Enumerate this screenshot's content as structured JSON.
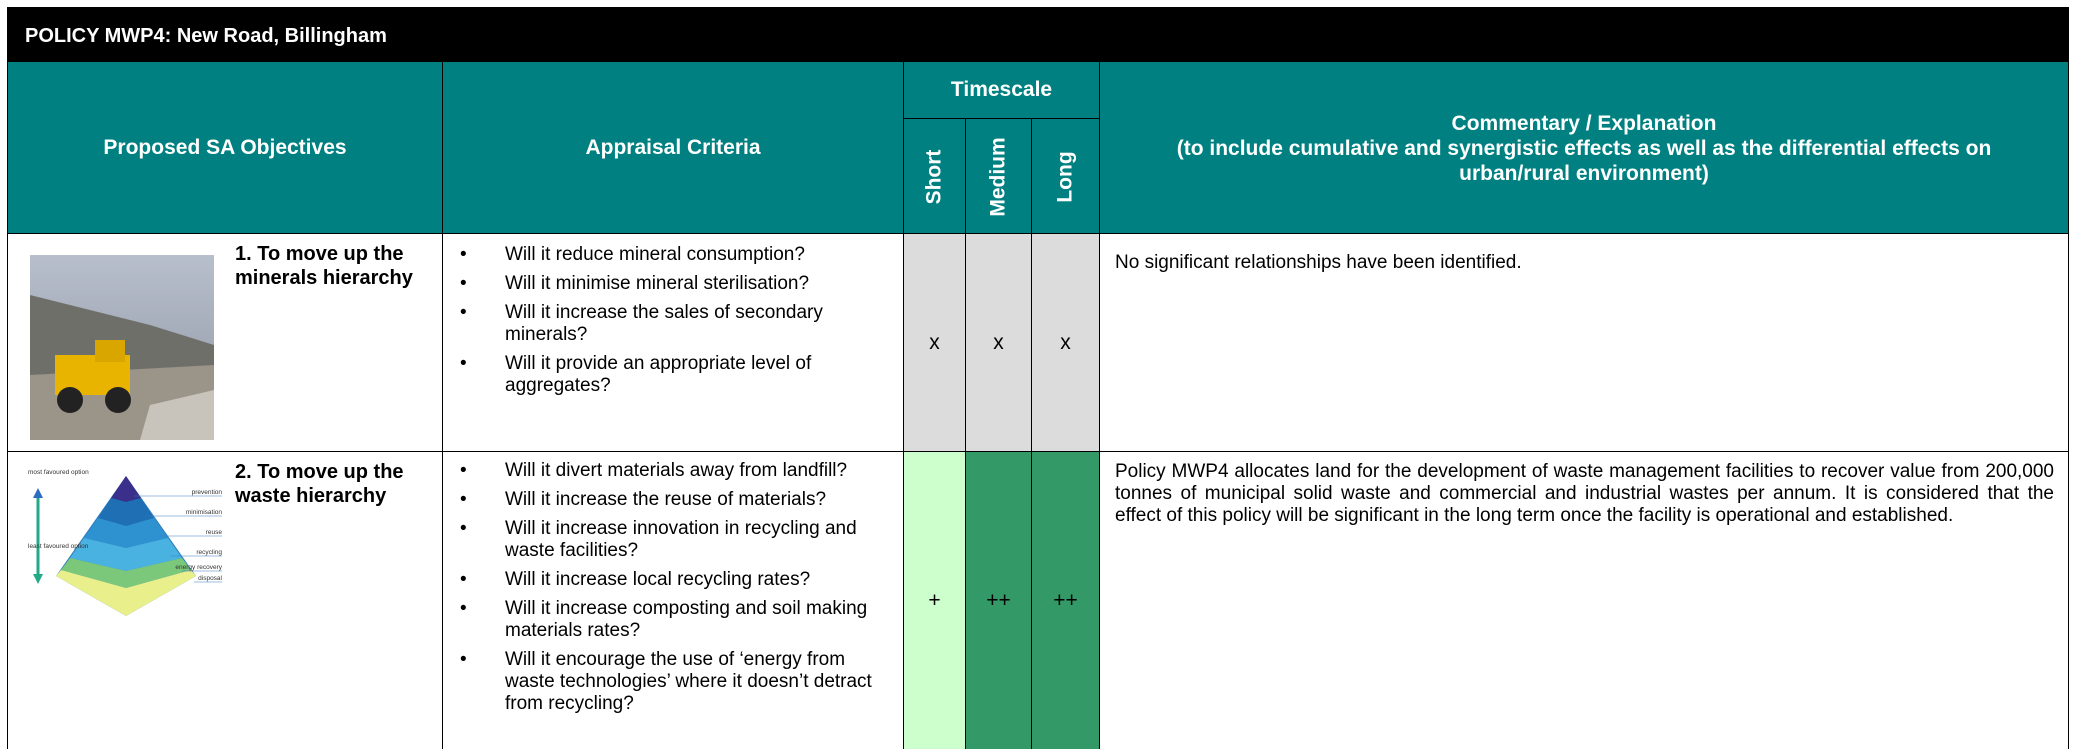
{
  "title": "POLICY MWP4: New Road, Billingham",
  "header": {
    "objectives": "Proposed SA Objectives",
    "criteria": "Appraisal Criteria",
    "timescale": "Timescale",
    "short": "Short",
    "medium": "Medium",
    "long": "Long",
    "commentary_title": "Commentary / Explanation",
    "commentary_note": "(to include cumulative and synergistic effects as well as the differential effects on urban/rural environment)"
  },
  "rows": [
    {
      "objective": "1. To move up the minerals hierarchy",
      "criteria": [
        "Will it reduce mineral consumption?",
        "Will it minimise mineral sterilisation?",
        "Will it increase the sales of secondary minerals?",
        "Will it provide an appropriate level of aggregates?"
      ],
      "short": "x",
      "medium": "x",
      "long": "x",
      "commentary": "No significant relationships have been identified."
    },
    {
      "objective": "2. To move up the waste hierarchy",
      "criteria": [
        "Will it divert materials away from landfill?",
        "Will it increase the reuse of materials?",
        "Will it increase innovation in recycling and waste facilities?",
        "Will it increase local recycling rates?",
        "Will it increase composting and soil making materials rates?",
        "Will it encourage the use of ‘energy from waste technologies’ where it doesn’t detract from recycling?"
      ],
      "short": "+",
      "medium": "++",
      "long": "++",
      "commentary": "Policy MWP4 allocates land for the development of waste management facilities to recover value from 200,000 tonnes of municipal solid waste and commercial and industrial wastes per annum. It is considered that the effect of this policy will be significant in the long term once the facility is operational and established."
    }
  ],
  "pyramid": {
    "most": "most favoured option",
    "least": "least favoured option",
    "levels": [
      "prevention",
      "minimisation",
      "reuse",
      "recycling",
      "energy recovery",
      "disposal"
    ]
  }
}
